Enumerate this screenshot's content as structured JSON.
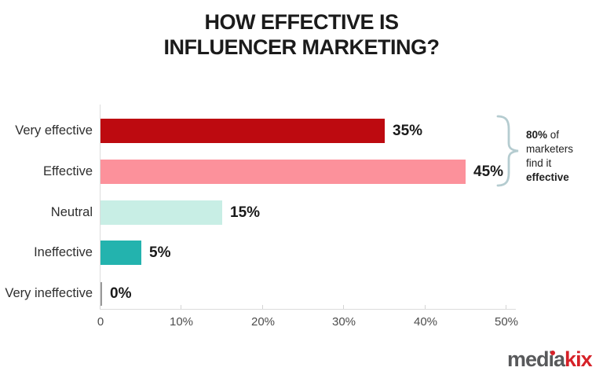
{
  "title": {
    "line1": "HOW EFFECTIVE IS",
    "line2": "INFLUENCER MARKETING?"
  },
  "chart_data": {
    "type": "bar",
    "orientation": "horizontal",
    "title": "HOW EFFECTIVE IS INFLUENCER MARKETING?",
    "categories": [
      "Very effective",
      "Effective",
      "Neutral",
      "Ineffective",
      "Very ineffective"
    ],
    "values": [
      35,
      45,
      15,
      5,
      0
    ],
    "value_labels": [
      "35%",
      "45%",
      "15%",
      "5%",
      "0%"
    ],
    "bar_colors": [
      "#bd0a10",
      "#fc919b",
      "#c8eee5",
      "#23b3ae",
      "#999999"
    ],
    "xlim": [
      0,
      50
    ],
    "x_ticks": [
      "0",
      "10%",
      "20%",
      "30%",
      "40%",
      "50%"
    ],
    "grid": false,
    "legend": "none"
  },
  "annotation": {
    "bold1": "80%",
    "rest1": "of",
    "line2": "marketers",
    "line3": "find it",
    "line4": "effective",
    "brace_color": "#b5ccd0"
  },
  "logo": {
    "gray_text": "media",
    "red_text": "kix",
    "gray_color": "#58595b",
    "red_color": "#d62128"
  }
}
